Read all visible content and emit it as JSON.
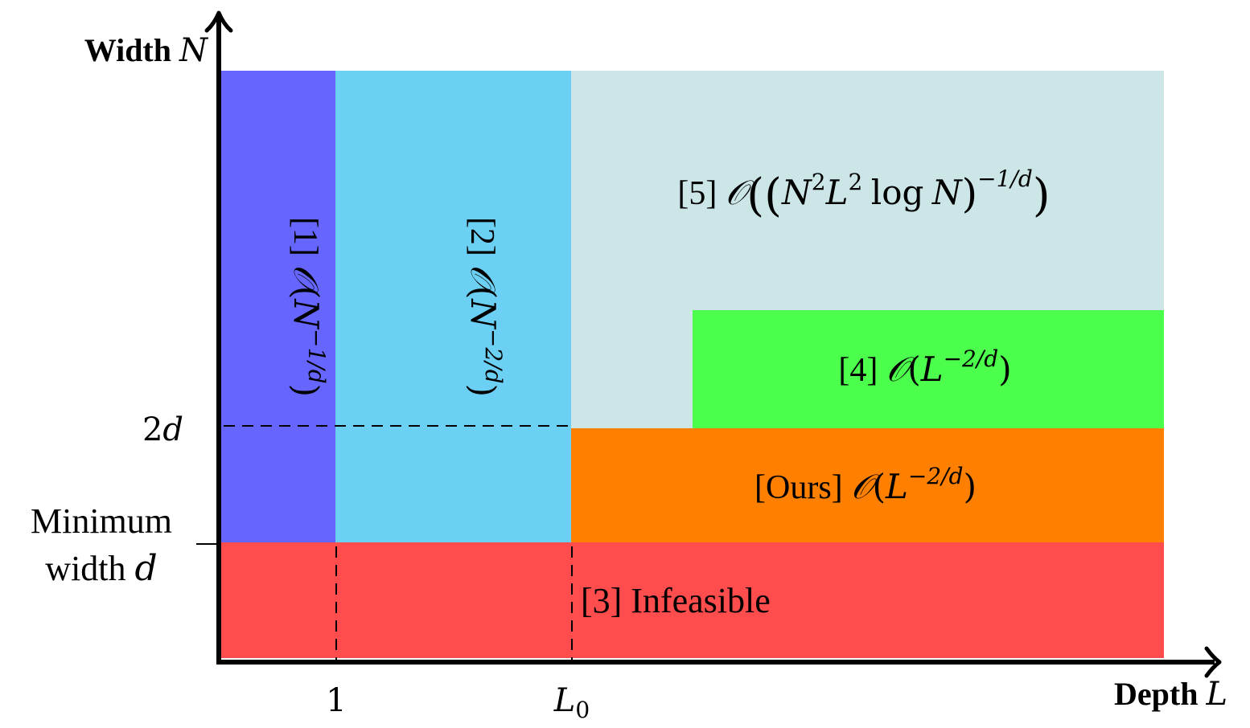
{
  "axes": {
    "y": {
      "label_bold": "Width",
      "label_var": "N"
    },
    "x": {
      "label_bold": "Depth",
      "label_var": "L"
    }
  },
  "ticks": {
    "x": [
      {
        "text": "1"
      },
      {
        "text": "L",
        "sub": "0"
      }
    ],
    "y": [
      {
        "num": "2",
        "var": "d"
      },
      {
        "line1": "Minimum",
        "line2_text": "width ",
        "line2_var": "d"
      }
    ]
  },
  "regions": [
    {
      "id": "r1",
      "color": "#6666ff",
      "tag": "[1]",
      "O": "𝒪",
      "open": "(",
      "base": "N",
      "exp": "−1/d",
      "close": ")"
    },
    {
      "id": "r2",
      "color": "#6ccff4",
      "tag": "[2]",
      "O": "𝒪",
      "open": "(",
      "base": "N",
      "exp": "−2/d",
      "close": ")"
    },
    {
      "id": "r3",
      "color": "#ff4c4c",
      "text": "[3] Infeasible"
    },
    {
      "id": "r4",
      "color": "#4cff4c",
      "tag": "[4]",
      "O": "𝒪",
      "open": "(",
      "base": "L",
      "exp": "−2/d",
      "close": ")"
    },
    {
      "id": "r5",
      "color": "#cce5e6",
      "tag": "[5]",
      "O": "𝒪",
      "open": "((",
      "N": "N",
      "N_exp": "2",
      "L": "L",
      "L_exp": "2",
      "log": "log",
      "logN": "N",
      "inner_close": ")",
      "exp": "−1/d",
      "close": ")"
    },
    {
      "id": "ours",
      "color": "#ff8000",
      "tag": "[Ours]",
      "O": "𝒪",
      "open": "(",
      "base": "L",
      "exp": "−2/d",
      "close": ")"
    }
  ]
}
